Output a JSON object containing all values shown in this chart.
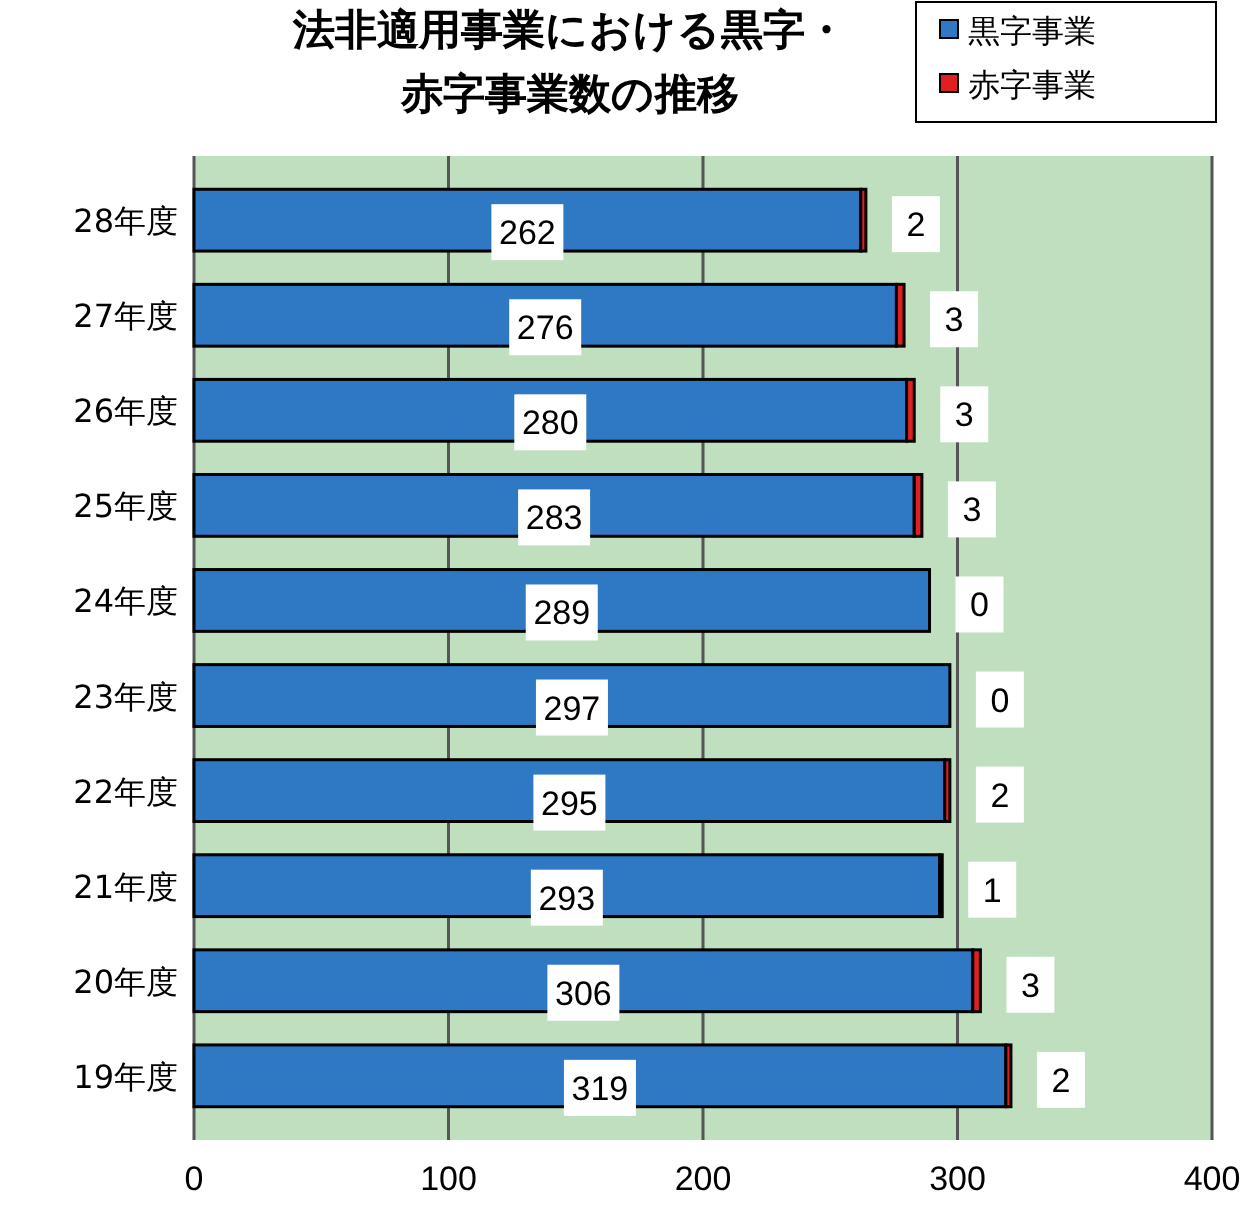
{
  "chart_data": {
    "type": "bar",
    "orientation": "horizontal",
    "stacked": true,
    "title": "法非適用事業における黒字・赤字事業数の推移",
    "categories": [
      "28年度",
      "27年度",
      "26年度",
      "25年度",
      "24年度",
      "23年度",
      "22年度",
      "21年度",
      "20年度",
      "19年度"
    ],
    "series": [
      {
        "name": "黒字事業",
        "color": "#2f78c4",
        "values": [
          262,
          276,
          280,
          283,
          289,
          297,
          295,
          293,
          306,
          319
        ]
      },
      {
        "name": "赤字事業",
        "color": "#e02020",
        "values": [
          2,
          3,
          3,
          3,
          0,
          0,
          2,
          1,
          3,
          2
        ]
      }
    ],
    "xlim": [
      0,
      400
    ],
    "xticks": [
      0,
      100,
      200,
      300,
      400
    ],
    "grid": "x",
    "legend": "top right",
    "data_labels": true
  }
}
